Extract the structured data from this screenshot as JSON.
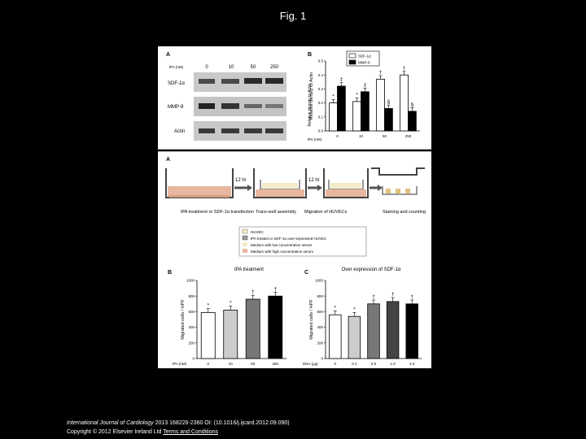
{
  "page": {
    "title": "Fig. 1",
    "footer": {
      "journal": "International Journal of Cardiology",
      "citation": " 2013 168226-2360 OI: (10.1016/j.ijcard.2012.09.090)",
      "copyright": "Copyright © 2012 Elsevier Ireland Ltd",
      "link": "Terms and Conditions"
    }
  },
  "figure": {
    "top_panel_a": {
      "letter": "A",
      "tpa_label": "tPA (nM)",
      "doses": [
        "0",
        "10",
        "50",
        "250"
      ],
      "rows": [
        "SDF-1α",
        "MMP-9",
        "Actin"
      ]
    },
    "top_panel_b": {
      "letter": "B",
      "ylabel": "Relative density to Actin",
      "xlabel": "tPA (nM)",
      "legend": [
        "SDF-1α",
        "MMP-9"
      ]
    },
    "schematic": {
      "letter": "A",
      "arrow1": "12 hr",
      "arrow2": "12 hr",
      "steps": [
        "tPA treatment or SDF-1α transfection",
        "Trans-well assembly",
        "Migration of HUVECs",
        "Staining and counting"
      ],
      "legend": [
        "HUVEC",
        "tPA treated or SDF-1α over-expressed HUVEC",
        "Medium with low concentration serum",
        "Medium with high concentration serum"
      ]
    },
    "panel_b": {
      "letter": "B",
      "title": "tPA treatment"
    },
    "panel_c": {
      "letter": "C",
      "title": "Over expression of SDF-1α"
    }
  },
  "chart_data": [
    {
      "type": "bar",
      "panel": "top-B",
      "categories": [
        "0",
        "10",
        "50",
        "250"
      ],
      "series": [
        {
          "name": "SDF-1α",
          "values": [
            0.2,
            0.21,
            0.37,
            0.4
          ],
          "color": "#ffffff"
        },
        {
          "name": "MMP-9",
          "values": [
            0.32,
            0.28,
            0.16,
            0.14
          ],
          "color": "#000000"
        }
      ],
      "ylabel": "Relative density to Actin",
      "xlabel": "tPA (nM)",
      "ylim": [
        0,
        0.5
      ],
      "yticks": [
        "0.0",
        "0.1",
        "0.2",
        "0.3",
        "0.4",
        "0.5"
      ],
      "annotations": [
        "*",
        "‡",
        "*",
        "‡",
        "†",
        "§",
        "†",
        "§"
      ]
    },
    {
      "type": "bar",
      "panel": "B",
      "categories": [
        "0",
        "10",
        "50",
        "250"
      ],
      "values": [
        590,
        620,
        760,
        800
      ],
      "colors": [
        "#ffffff",
        "#cccccc",
        "#777777",
        "#000000"
      ],
      "ylabel": "Migrated cells / HPF",
      "xlabel": "tPA (nM)",
      "ylim": [
        0,
        1000
      ],
      "yticks": [
        "0",
        "200",
        "400",
        "600",
        "800",
        "1000"
      ],
      "annotations": [
        "*",
        "*",
        "†",
        "†"
      ]
    },
    {
      "type": "bar",
      "panel": "C",
      "categories": [
        "0",
        "0.1",
        "0.5",
        "1.0",
        "2.0"
      ],
      "values": [
        560,
        540,
        700,
        730,
        700
      ],
      "colors": [
        "#ffffff",
        "#cccccc",
        "#777777",
        "#444444",
        "#000000"
      ],
      "ylabel": "Migrated cells / HPF",
      "xlabel": "DNA (μg)",
      "ylim": [
        0,
        1000
      ],
      "yticks": [
        "0",
        "200",
        "400",
        "600",
        "800",
        "1000"
      ],
      "annotations": [
        "*",
        "*",
        "†",
        "†",
        "†"
      ]
    }
  ]
}
